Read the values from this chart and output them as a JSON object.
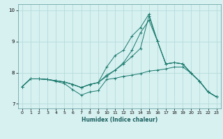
{
  "xlabel": "Humidex (Indice chaleur)",
  "background_color": "#d7f0f0",
  "grid_color": "#b0d8d8",
  "line_color": "#1a7a6e",
  "xlim": [
    -0.5,
    23.5
  ],
  "ylim": [
    6.85,
    10.2
  ],
  "yticks": [
    7,
    8,
    9,
    10
  ],
  "xticks": [
    0,
    1,
    2,
    3,
    4,
    5,
    6,
    7,
    8,
    9,
    10,
    11,
    12,
    13,
    14,
    15,
    16,
    17,
    18,
    19,
    20,
    21,
    22,
    23
  ],
  "series": [
    {
      "x": [
        0,
        1,
        2,
        3,
        4,
        5,
        6,
        7,
        8,
        9,
        10,
        11,
        12,
        13,
        14,
        15,
        16,
        17,
        18,
        19,
        20,
        21,
        22,
        23
      ],
      "y": [
        7.55,
        7.8,
        7.8,
        7.78,
        7.72,
        7.65,
        7.45,
        7.28,
        7.38,
        7.42,
        7.78,
        7.82,
        7.88,
        7.92,
        7.97,
        8.05,
        8.08,
        8.12,
        8.18,
        8.18,
        7.98,
        7.72,
        7.38,
        7.22
      ]
    },
    {
      "x": [
        0,
        1,
        2,
        3,
        4,
        5,
        6,
        7,
        8,
        9,
        10,
        11,
        12,
        13,
        14,
        15,
        16,
        17,
        18,
        19,
        20,
        21,
        22,
        23
      ],
      "y": [
        7.55,
        7.8,
        7.8,
        7.78,
        7.74,
        7.7,
        7.62,
        7.52,
        7.62,
        7.68,
        8.18,
        8.55,
        8.72,
        9.18,
        9.45,
        9.88,
        9.02,
        8.28,
        8.32,
        8.28,
        7.98,
        7.72,
        7.38,
        7.22
      ]
    },
    {
      "x": [
        0,
        1,
        2,
        3,
        4,
        5,
        6,
        7,
        8,
        9,
        10,
        11,
        12,
        13,
        14,
        15,
        16,
        17,
        18,
        19,
        20,
        21,
        22,
        23
      ],
      "y": [
        7.55,
        7.8,
        7.8,
        7.78,
        7.74,
        7.7,
        7.62,
        7.52,
        7.62,
        7.68,
        7.88,
        8.08,
        8.28,
        8.52,
        8.78,
        9.82,
        9.02,
        8.28,
        8.32,
        8.28,
        7.98,
        7.72,
        7.38,
        7.22
      ]
    },
    {
      "x": [
        0,
        1,
        2,
        3,
        4,
        5,
        6,
        7,
        8,
        9,
        10,
        11,
        12,
        13,
        14,
        15,
        16,
        17,
        18,
        19,
        20,
        21,
        22,
        23
      ],
      "y": [
        7.55,
        7.8,
        7.8,
        7.78,
        7.74,
        7.7,
        7.62,
        7.52,
        7.62,
        7.68,
        7.92,
        8.08,
        8.32,
        8.72,
        9.28,
        9.68,
        9.02,
        8.28,
        8.32,
        8.28,
        7.98,
        7.72,
        7.38,
        7.22
      ]
    }
  ]
}
